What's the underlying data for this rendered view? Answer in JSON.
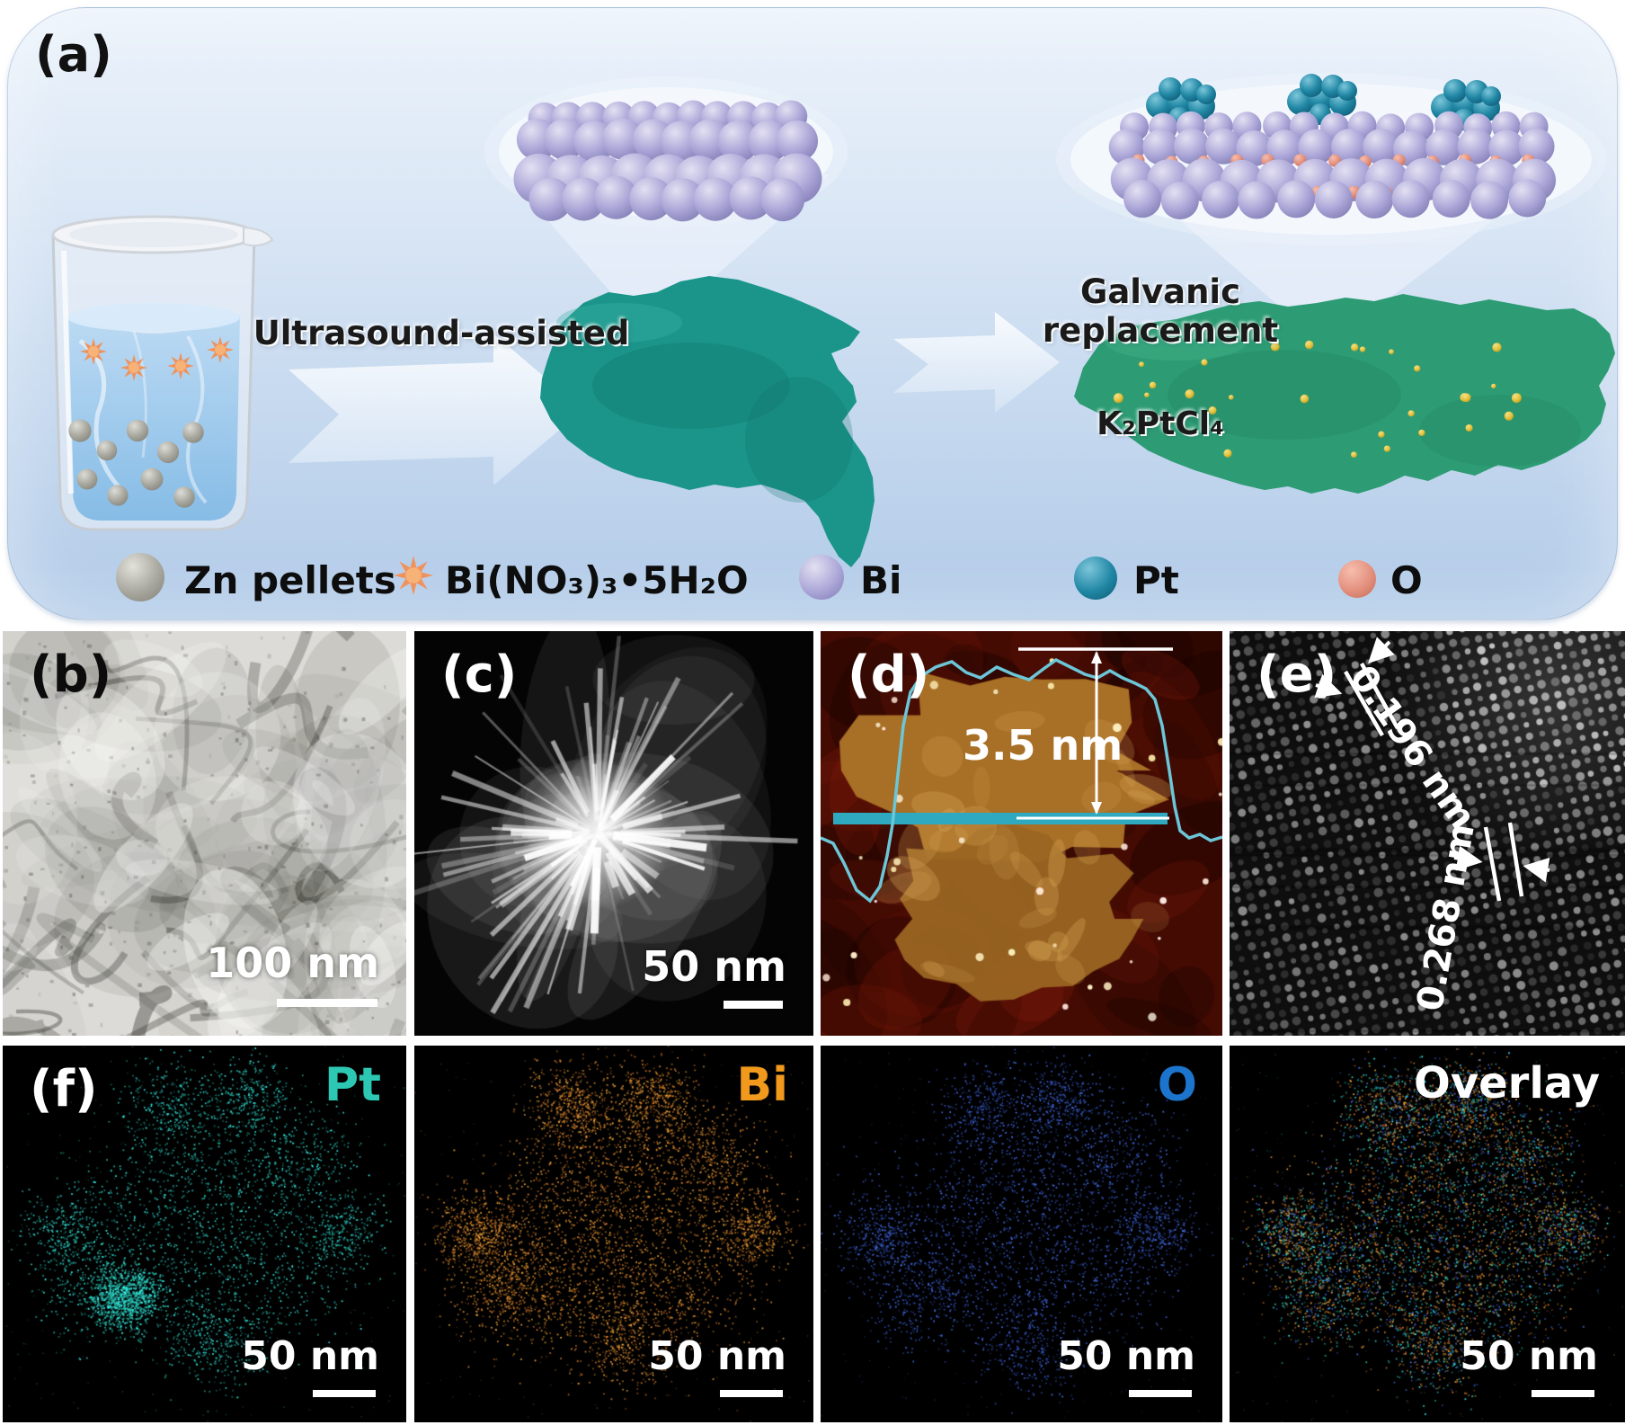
{
  "colors": {
    "panel_a_bg_top": "#ecf3fb",
    "panel_a_bg_bottom": "#b2cbe8",
    "sheet1_teal": "#1b958a",
    "sheet2_green": "#2d9c74",
    "pt_particle_yellow": "#e4c33e",
    "bi_atom_purple": "#aca7d8",
    "pt_atom_teal": "#2187a4",
    "o_atom_salmon": "#e4907e",
    "zn_gray": "#a8a89f",
    "bi_nitrate_orange": "#f0925c",
    "afm_cyan": "#3fb0c6",
    "map_pt": "#2dd3c0",
    "map_bi": "#e8882e",
    "map_o": "#3b5ed6"
  },
  "panel_a": {
    "label": "(a)",
    "step1_label": "Ultrasound-assisted",
    "step2_label": "Galvanic replacement",
    "step2_reagent": "K₂PtCl₄",
    "legend": {
      "zn": "Zn pellets",
      "bi_nitrate": "Bi(NO₃)₃•5H₂O",
      "bi": "Bi",
      "pt": "Pt",
      "o": "O"
    }
  },
  "panel_b": {
    "label": "(b)",
    "scale_bar": "100 nm"
  },
  "panel_c": {
    "label": "(c)",
    "scale_bar": "50 nm"
  },
  "panel_d": {
    "label": "(d)",
    "height_annotation": "3.5 nm"
  },
  "panel_e": {
    "label": "(e)",
    "spacing_1": "0.196 nm",
    "spacing_2": "0.268 nm"
  },
  "panel_f": {
    "label": "(f)",
    "maps": [
      {
        "element": "Pt",
        "label_color": "#2cc8b4",
        "scale_bar": "50 nm"
      },
      {
        "element": "Bi",
        "label_color": "#f0991c",
        "scale_bar": "50 nm"
      },
      {
        "element": "O",
        "label_color": "#1c74cc",
        "scale_bar": "50 nm"
      },
      {
        "element": "Overlay",
        "label_color": "#ffffff",
        "scale_bar": "50 nm"
      }
    ]
  }
}
